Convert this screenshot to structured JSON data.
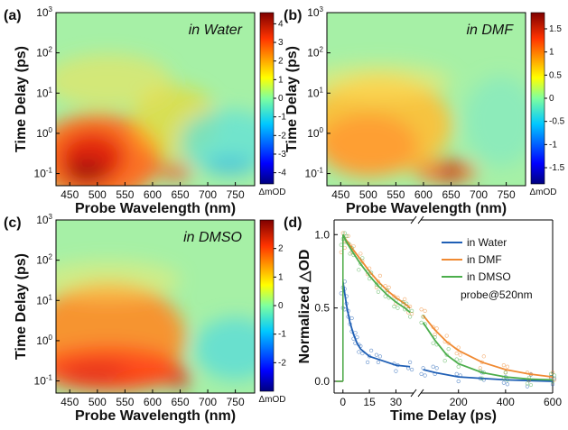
{
  "colors": {
    "background": "#ffffff",
    "axis": "#000000",
    "water": "#1f5fb5",
    "dmf": "#f08a32",
    "dmso": "#4cae4c"
  },
  "chart_data": [
    {
      "type": "heatmap",
      "panel": "(a)",
      "annotation": "in Water",
      "xlabel": "Probe Wavelength (nm)",
      "ylabel": "Time Delay (ps)",
      "xlim": [
        425,
        785
      ],
      "ylim": [
        0.05,
        1000
      ],
      "yscale": "log",
      "xticks": [
        "450",
        "500",
        "550",
        "600",
        "650",
        "700",
        "750"
      ],
      "yticks": [
        "10^-1",
        "10^0",
        "10^1",
        "10^2",
        "10^3"
      ],
      "colorbar": {
        "label": "ΔmOD",
        "min": -4.6,
        "max": 4.6,
        "ticks": [
          "4",
          "3",
          "2",
          "1",
          "0",
          "-1",
          "-2",
          "-3",
          "-4"
        ]
      }
    },
    {
      "type": "heatmap",
      "panel": "(b)",
      "annotation": "in DMF",
      "xlabel": "Probe Wavelength (nm)",
      "ylabel": "Time Delay (ps)",
      "xlim": [
        425,
        785
      ],
      "ylim": [
        0.05,
        1000
      ],
      "yscale": "log",
      "xticks": [
        "450",
        "500",
        "550",
        "600",
        "650",
        "700",
        "750"
      ],
      "yticks": [
        "10^-1",
        "10^0",
        "10^1",
        "10^2",
        "10^3"
      ],
      "colorbar": {
        "label": "ΔmOD",
        "min": -1.85,
        "max": 1.85,
        "ticks": [
          "1.5",
          "1",
          "0.5",
          "0",
          "-0.5",
          "-1",
          "-1.5"
        ]
      }
    },
    {
      "type": "heatmap",
      "panel": "(c)",
      "annotation": "in DMSO",
      "xlabel": "Probe Wavelength (nm)",
      "ylabel": "Time Delay (ps)",
      "xlim": [
        425,
        785
      ],
      "ylim": [
        0.05,
        1000
      ],
      "yscale": "log",
      "xticks": [
        "450",
        "500",
        "550",
        "600",
        "650",
        "700",
        "750"
      ],
      "yticks": [
        "10^-1",
        "10^0",
        "10^1",
        "10^2",
        "10^3"
      ],
      "colorbar": {
        "label": "ΔmOD",
        "min": -3.0,
        "max": 3.0,
        "ticks": [
          "2",
          "1",
          "0",
          "-1",
          "-2"
        ]
      }
    },
    {
      "type": "line",
      "panel": "(d)",
      "xlabel": "Time Delay (ps)",
      "ylabel": "Normalized △OD",
      "xaxis": {
        "break_at": 40,
        "seg1": [
          -5,
          40
        ],
        "seg2": [
          40,
          600
        ],
        "ticks1": [
          "0",
          "15",
          "30"
        ],
        "ticks2": [
          "200",
          "400",
          "600"
        ]
      },
      "ylim": [
        -0.08,
        1.1
      ],
      "yticks": [
        "0.0",
        "0.5",
        "1.0"
      ],
      "annotation": "probe@520nm",
      "series": [
        {
          "name": "in Water",
          "color_key": "water",
          "x": [
            0,
            1,
            2,
            4,
            6,
            8,
            10,
            15,
            20,
            30,
            38,
            50,
            100,
            200,
            300,
            400,
            500,
            600
          ],
          "y": [
            0.68,
            0.6,
            0.52,
            0.4,
            0.32,
            0.26,
            0.22,
            0.17,
            0.15,
            0.11,
            0.1,
            0.08,
            0.06,
            0.03,
            0.02,
            0.01,
            0.005,
            0.0
          ]
        },
        {
          "name": "in DMF",
          "color_key": "dmf",
          "x": [
            0,
            2,
            5,
            10,
            15,
            20,
            25,
            30,
            35,
            38,
            50,
            100,
            150,
            200,
            300,
            400,
            500,
            600
          ],
          "y": [
            1.0,
            0.96,
            0.91,
            0.83,
            0.75,
            0.68,
            0.62,
            0.57,
            0.53,
            0.5,
            0.45,
            0.35,
            0.27,
            0.21,
            0.13,
            0.08,
            0.05,
            0.03
          ]
        },
        {
          "name": "in DMSO",
          "color_key": "dmso",
          "x": [
            0,
            2,
            5,
            10,
            15,
            20,
            25,
            30,
            35,
            38,
            50,
            100,
            150,
            200,
            300,
            400,
            500,
            600
          ],
          "y": [
            1.0,
            0.95,
            0.89,
            0.8,
            0.72,
            0.65,
            0.59,
            0.54,
            0.5,
            0.47,
            0.4,
            0.28,
            0.18,
            0.12,
            0.06,
            0.03,
            0.015,
            0.01
          ]
        }
      ]
    }
  ]
}
